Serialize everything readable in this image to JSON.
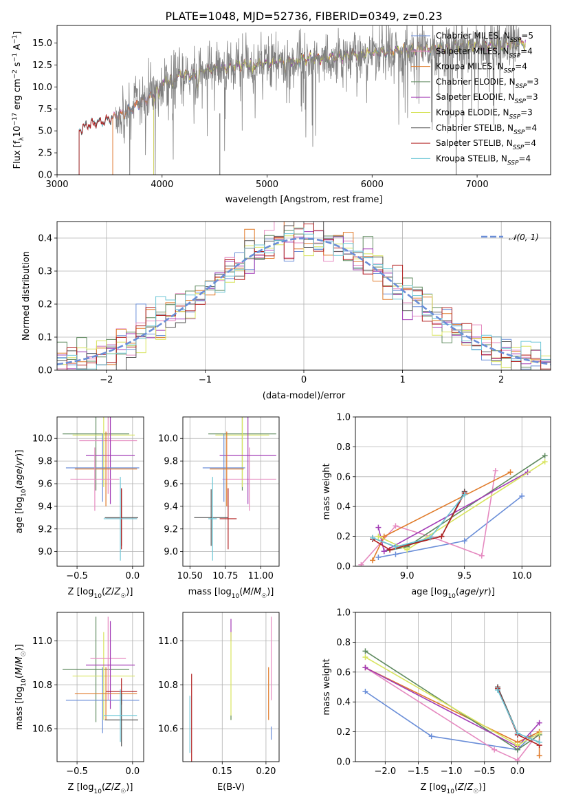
{
  "figure_title": "PLATE=1048, MJD=52736, FIBERID=0349, z=0.23",
  "colors": {
    "chabrier_miles": "#6a8ed8",
    "salpeter_miles": "#e58ac0",
    "kroupa_miles": "#e07b2a",
    "chabrier_elodie": "#5f8a5f",
    "salpeter_elodie": "#a23bb5",
    "kroupa_elodie": "#d8e45e",
    "chabrier_stelib": "#555555",
    "salpeter_stelib": "#b22222",
    "kroupa_stelib": "#6cc6d6",
    "data": "#808080"
  },
  "chart_data": [
    {
      "id": "spectrum",
      "type": "line",
      "title": "PLATE=1048, MJD=52736, FIBERID=0349, z=0.23",
      "xlabel": "wavelength [Angstrom, rest frame]",
      "ylabel": "Flux [f_λ 10^-17 erg cm^-2 s^-1 A^-1]",
      "xlim": [
        3000,
        7700
      ],
      "ylim": [
        0,
        17
      ],
      "xticks": [
        3000,
        4000,
        5000,
        6000,
        7000
      ],
      "yticks": [
        0.0,
        2.5,
        5.0,
        7.5,
        10.0,
        12.5,
        15.0
      ],
      "legend_position": "top-right",
      "legend": [
        {
          "label": "Chabrier MILES, N",
          "sub": "SSP",
          "val": "=5",
          "color_key": "chabrier_miles"
        },
        {
          "label": "Salpeter MILES, N",
          "sub": "SSP",
          "val": "=4",
          "color_key": "salpeter_miles"
        },
        {
          "label": "Kroupa MILES, N",
          "sub": "SSP",
          "val": "=4",
          "color_key": "kroupa_miles"
        },
        {
          "label": "Chabrier ELODIE, N",
          "sub": "SSP",
          "val": "=3",
          "color_key": "chabrier_elodie"
        },
        {
          "label": "Salpeter ELODIE, N",
          "sub": "SSP",
          "val": "=3",
          "color_key": "salpeter_elodie"
        },
        {
          "label": "Kroupa ELODIE, N",
          "sub": "SSP",
          "val": "=3",
          "color_key": "kroupa_elodie"
        },
        {
          "label": "Chabrier STELIB, N",
          "sub": "SSP",
          "val": "=4",
          "color_key": "chabrier_stelib"
        },
        {
          "label": "Salpeter STELIB, N",
          "sub": "SSP",
          "val": "=4",
          "color_key": "salpeter_stelib"
        },
        {
          "label": "Kroupa STELIB, N",
          "sub": "SSP",
          "val": "=4",
          "color_key": "kroupa_stelib"
        }
      ],
      "continuum": {
        "x": [
          3200,
          3300,
          3400,
          3500,
          3600,
          3700,
          3800,
          3900,
          4000,
          4100,
          4200,
          4300,
          4400,
          4600,
          4800,
          5000,
          5300,
          5600,
          6000,
          6500,
          7000,
          7450
        ],
        "y": [
          5.0,
          5.8,
          6.0,
          6.3,
          6.8,
          7.4,
          8.2,
          9.0,
          10.3,
          11.0,
          11.5,
          11.2,
          11.9,
          12.2,
          12.6,
          12.7,
          13.1,
          13.4,
          13.9,
          14.3,
          14.7,
          15.0
        ]
      },
      "model_starts": [
        {
          "color_key": "kroupa_stelib",
          "x0": 3210
        },
        {
          "color_key": "chabrier_stelib",
          "x0": 3210
        },
        {
          "color_key": "salpeter_stelib",
          "x0": 3210
        },
        {
          "color_key": "chabrier_miles",
          "x0": 3530
        },
        {
          "color_key": "salpeter_miles",
          "x0": 3530
        },
        {
          "color_key": "kroupa_miles",
          "x0": 3530
        },
        {
          "color_key": "chabrier_elodie",
          "x0": 3920
        },
        {
          "color_key": "salpeter_elodie",
          "x0": 3920
        },
        {
          "color_key": "kroupa_elodie",
          "x0": 3920
        }
      ],
      "data_range": [
        3560,
        7400
      ]
    },
    {
      "id": "residuals",
      "type": "line",
      "xlabel": "(data-model)/error",
      "ylabel": "Normed distribution",
      "xlim": [
        -2.5,
        2.5
      ],
      "ylim": [
        0,
        0.45
      ],
      "xticks": [
        -2,
        -1,
        0,
        1,
        2
      ],
      "yticks": [
        0.0,
        0.1,
        0.2,
        0.3,
        0.4
      ],
      "grid": true,
      "legend_position": "top-right",
      "legend": [
        {
          "label": "𝒩(0, 1)",
          "color_key": "chabrier_miles",
          "dashed": true
        }
      ],
      "bins": {
        "start": -2.5,
        "width": 0.1,
        "count": 50
      }
    },
    {
      "id": "age-vs-Z",
      "type": "scatter",
      "xlabel": "Z [log10(Z/Z☉)]",
      "ylabel": "age  [log10(age/yr)]",
      "xlim": [
        -0.68,
        0.1
      ],
      "ylim": [
        8.87,
        10.19
      ],
      "xticks": [
        -0.5,
        0.0
      ],
      "yticks": [
        9.0,
        9.2,
        9.4,
        9.6,
        9.8,
        10.0
      ],
      "grid": true,
      "points": [
        {
          "color_key": "chabrier_elodie",
          "x": -0.33,
          "xerr": 0.3,
          "y": 10.04,
          "yerr": 0.5
        },
        {
          "color_key": "kroupa_elodie",
          "x": -0.26,
          "xerr": 0.28,
          "y": 10.03,
          "yerr": 0.46
        },
        {
          "color_key": "salpeter_miles",
          "x": -0.22,
          "xerr": 0.26,
          "y": 9.98,
          "yerr": 0.47
        },
        {
          "color_key": "salpeter_elodie",
          "x": -0.2,
          "xerr": 0.22,
          "y": 9.85,
          "yerr": 0.43
        },
        {
          "color_key": "chabrier_miles",
          "x": -0.27,
          "xerr": 0.33,
          "y": 9.74,
          "yerr": 0.3
        },
        {
          "color_key": "kroupa_miles",
          "x": -0.24,
          "xerr": 0.28,
          "y": 9.73,
          "yerr": 0.33
        },
        {
          "color_key": "salpeter_miles",
          "x": -0.34,
          "xerr": 0.22,
          "y": 9.64,
          "yerr": 0.28
        },
        {
          "color_key": "chabrier_stelib",
          "x": -0.1,
          "xerr": 0.15,
          "y": 9.3,
          "yerr": 0.25
        },
        {
          "color_key": "salpeter_stelib",
          "x": -0.1,
          "xerr": 0.14,
          "y": 9.29,
          "yerr": 0.27
        },
        {
          "color_key": "kroupa_stelib",
          "x": -0.11,
          "xerr": 0.15,
          "y": 9.29,
          "yerr": 0.37
        }
      ]
    },
    {
      "id": "age-vs-mass",
      "type": "scatter",
      "xlabel": "mass [log10(M/M☉)]",
      "ylabel": "",
      "xlim": [
        10.45,
        11.13
      ],
      "ylim": [
        8.87,
        10.19
      ],
      "xticks": [
        10.5,
        10.75,
        11.0
      ],
      "yticks": [
        9.0,
        9.2,
        9.4,
        9.6,
        9.8,
        10.0
      ],
      "grid": true,
      "points": [
        {
          "color_key": "chabrier_elodie",
          "x": 10.87,
          "xerr": 0.24,
          "y": 10.04,
          "yerr": 0.5
        },
        {
          "color_key": "kroupa_elodie",
          "x": 10.87,
          "xerr": 0.19,
          "y": 10.03,
          "yerr": 0.46
        },
        {
          "color_key": "salpeter_miles",
          "x": 10.92,
          "xerr": 0.19,
          "y": 9.64,
          "yerr": 0.28
        },
        {
          "color_key": "salpeter_elodie",
          "x": 10.91,
          "xerr": 0.2,
          "y": 9.85,
          "yerr": 0.43
        },
        {
          "color_key": "chabrier_miles",
          "x": 10.74,
          "xerr": 0.15,
          "y": 9.74,
          "yerr": 0.3
        },
        {
          "color_key": "kroupa_miles",
          "x": 10.76,
          "xerr": 0.12,
          "y": 9.73,
          "yerr": 0.33
        },
        {
          "color_key": "chabrier_stelib",
          "x": 10.65,
          "xerr": 0.12,
          "y": 9.3,
          "yerr": 0.25
        },
        {
          "color_key": "salpeter_stelib",
          "x": 10.77,
          "xerr": 0.06,
          "y": 9.29,
          "yerr": 0.27
        },
        {
          "color_key": "kroupa_stelib",
          "x": 10.66,
          "xerr": 0.03,
          "y": 9.29,
          "yerr": 0.37
        }
      ]
    },
    {
      "id": "weight-vs-age",
      "type": "line",
      "xlabel": "age  [log10(age/yr)]",
      "ylabel": "mass weight",
      "xlim": [
        8.55,
        10.25
      ],
      "ylim": [
        0,
        1
      ],
      "xticks": [
        9.0,
        9.5,
        10.0
      ],
      "yticks": [
        0.0,
        0.2,
        0.4,
        0.6,
        0.8,
        1.0
      ],
      "grid": true,
      "series": [
        {
          "color_key": "chabrier_miles",
          "x": [
            8.75,
            8.9,
            9.5,
            10.0
          ],
          "y": [
            0.06,
            0.08,
            0.17,
            0.47
          ]
        },
        {
          "color_key": "salpeter_miles",
          "x": [
            8.6,
            8.9,
            9.2,
            9.65,
            9.77
          ],
          "y": [
            0.01,
            0.27,
            0.2,
            0.07,
            0.64
          ]
        },
        {
          "color_key": "kroupa_miles",
          "x": [
            8.7,
            8.8,
            9.9
          ],
          "y": [
            0.04,
            0.2,
            0.63
          ]
        },
        {
          "color_key": "chabrier_elodie",
          "x": [
            8.8,
            9.0,
            10.2
          ],
          "y": [
            0.1,
            0.13,
            0.74
          ]
        },
        {
          "color_key": "salpeter_elodie",
          "x": [
            8.75,
            8.8,
            10.05
          ],
          "y": [
            0.26,
            0.1,
            0.63
          ]
        },
        {
          "color_key": "kroupa_elodie",
          "x": [
            8.75,
            9.0,
            10.2
          ],
          "y": [
            0.2,
            0.11,
            0.7
          ]
        },
        {
          "color_key": "chabrier_stelib",
          "x": [
            8.7,
            8.9,
            9.3,
            9.5
          ],
          "y": [
            0.19,
            0.13,
            0.2,
            0.5
          ]
        },
        {
          "color_key": "salpeter_stelib",
          "x": [
            8.7,
            8.85,
            9.3,
            9.5
          ],
          "y": [
            0.18,
            0.11,
            0.2,
            0.49
          ]
        },
        {
          "color_key": "kroupa_stelib",
          "x": [
            8.7,
            8.9,
            9.2,
            9.5
          ],
          "y": [
            0.19,
            0.13,
            0.19,
            0.48
          ]
        }
      ]
    },
    {
      "id": "mass-vs-Z",
      "type": "scatter",
      "xlabel": "Z [log10(Z/Z☉)]",
      "ylabel": "mass [log10(M/M☉)]",
      "xlim": [
        -0.68,
        0.1
      ],
      "ylim": [
        10.45,
        11.13
      ],
      "xticks": [
        -0.5,
        0.0
      ],
      "yticks": [
        10.6,
        10.8,
        11.0
      ],
      "grid": true,
      "points": [
        {
          "color_key": "chabrier_elodie",
          "x": -0.33,
          "xerr": 0.3,
          "y": 10.87,
          "yerr": 0.24
        },
        {
          "color_key": "kroupa_elodie",
          "x": -0.26,
          "xerr": 0.28,
          "y": 10.84,
          "yerr": 0.2
        },
        {
          "color_key": "salpeter_miles",
          "x": -0.22,
          "xerr": 0.16,
          "y": 10.92,
          "yerr": 0.19
        },
        {
          "color_key": "salpeter_elodie",
          "x": -0.2,
          "xerr": 0.22,
          "y": 10.89,
          "yerr": 0.2
        },
        {
          "color_key": "chabrier_miles",
          "x": -0.27,
          "xerr": 0.33,
          "y": 10.73,
          "yerr": 0.15
        },
        {
          "color_key": "kroupa_miles",
          "x": -0.24,
          "xerr": 0.28,
          "y": 10.76,
          "yerr": 0.12
        },
        {
          "color_key": "salpeter_stelib",
          "x": -0.1,
          "xerr": 0.14,
          "y": 10.77,
          "yerr": 0.06
        },
        {
          "color_key": "chabrier_stelib",
          "x": -0.1,
          "xerr": 0.15,
          "y": 10.64,
          "yerr": 0.12
        },
        {
          "color_key": "kroupa_stelib",
          "x": -0.11,
          "xerr": 0.15,
          "y": 10.66,
          "yerr": 0.12
        }
      ]
    },
    {
      "id": "mass-vs-EBV",
      "type": "scatter",
      "xlabel": "E(B-V)",
      "ylabel": "",
      "xlim": [
        0.105,
        0.215
      ],
      "ylim": [
        10.45,
        11.13
      ],
      "xticks": [
        0.15,
        0.2
      ],
      "yticks": [
        10.6,
        10.8,
        11.0
      ],
      "grid": true,
      "points": [
        {
          "color_key": "salpeter_stelib",
          "x": 0.115,
          "y": 10.65,
          "yerr": 0.2
        },
        {
          "color_key": "kroupa_stelib",
          "x": 0.113,
          "y": 10.62,
          "yerr": 0.13
        },
        {
          "color_key": "salpeter_elodie",
          "x": 0.16,
          "y": 11.05,
          "yerr": 0.05
        },
        {
          "color_key": "kroupa_elodie",
          "x": 0.16,
          "y": 10.84,
          "yerr": 0.2
        },
        {
          "color_key": "chabrier_elodie",
          "x": 0.16,
          "y": 10.65,
          "yerr": 0.01
        },
        {
          "color_key": "salpeter_miles",
          "x": 0.206,
          "y": 10.92,
          "yerr": 0.19
        },
        {
          "color_key": "kroupa_miles",
          "x": 0.203,
          "y": 10.76,
          "yerr": 0.12
        },
        {
          "color_key": "chabrier_miles",
          "x": 0.206,
          "y": 10.58,
          "yerr": 0.03
        }
      ]
    },
    {
      "id": "weight-vs-Z",
      "type": "line",
      "xlabel": "Z [log10(Z/Z☉)]",
      "ylabel": "mass weight",
      "xlim": [
        -2.45,
        0.5
      ],
      "ylim": [
        0,
        1
      ],
      "xticks": [
        -2.0,
        -1.5,
        -1.0,
        -0.5,
        0.0
      ],
      "yticks": [
        0.0,
        0.2,
        0.4,
        0.6,
        0.8,
        1.0
      ],
      "grid": true,
      "series": [
        {
          "color_key": "chabrier_miles",
          "x": [
            -2.3,
            -1.3,
            0.0,
            0.2
          ],
          "y": [
            0.47,
            0.17,
            0.08,
            0.17
          ]
        },
        {
          "color_key": "salpeter_miles",
          "x": [
            -2.3,
            -0.35,
            0.0,
            0.33
          ],
          "y": [
            0.63,
            0.08,
            0.01,
            0.2
          ]
        },
        {
          "color_key": "kroupa_miles",
          "x": [
            -2.3,
            0.0,
            0.33,
            0.33
          ],
          "y": [
            0.63,
            0.13,
            0.2,
            0.04
          ]
        },
        {
          "color_key": "chabrier_elodie",
          "x": [
            -2.3,
            0.0,
            0.33
          ],
          "y": [
            0.74,
            0.08,
            0.18
          ]
        },
        {
          "color_key": "salpeter_elodie",
          "x": [
            -2.3,
            0.0,
            0.33
          ],
          "y": [
            0.63,
            0.1,
            0.26
          ]
        },
        {
          "color_key": "kroupa_elodie",
          "x": [
            -2.3,
            0.0,
            0.33
          ],
          "y": [
            0.7,
            0.11,
            0.19
          ]
        },
        {
          "color_key": "chabrier_stelib",
          "x": [
            -0.3,
            0.0,
            0.33
          ],
          "y": [
            0.5,
            0.19,
            0.13
          ]
        },
        {
          "color_key": "salpeter_stelib",
          "x": [
            -0.3,
            0.0,
            0.33
          ],
          "y": [
            0.49,
            0.18,
            0.11
          ]
        },
        {
          "color_key": "kroupa_stelib",
          "x": [
            -0.3,
            0.0,
            0.33
          ],
          "y": [
            0.48,
            0.19,
            0.13
          ]
        }
      ]
    }
  ]
}
